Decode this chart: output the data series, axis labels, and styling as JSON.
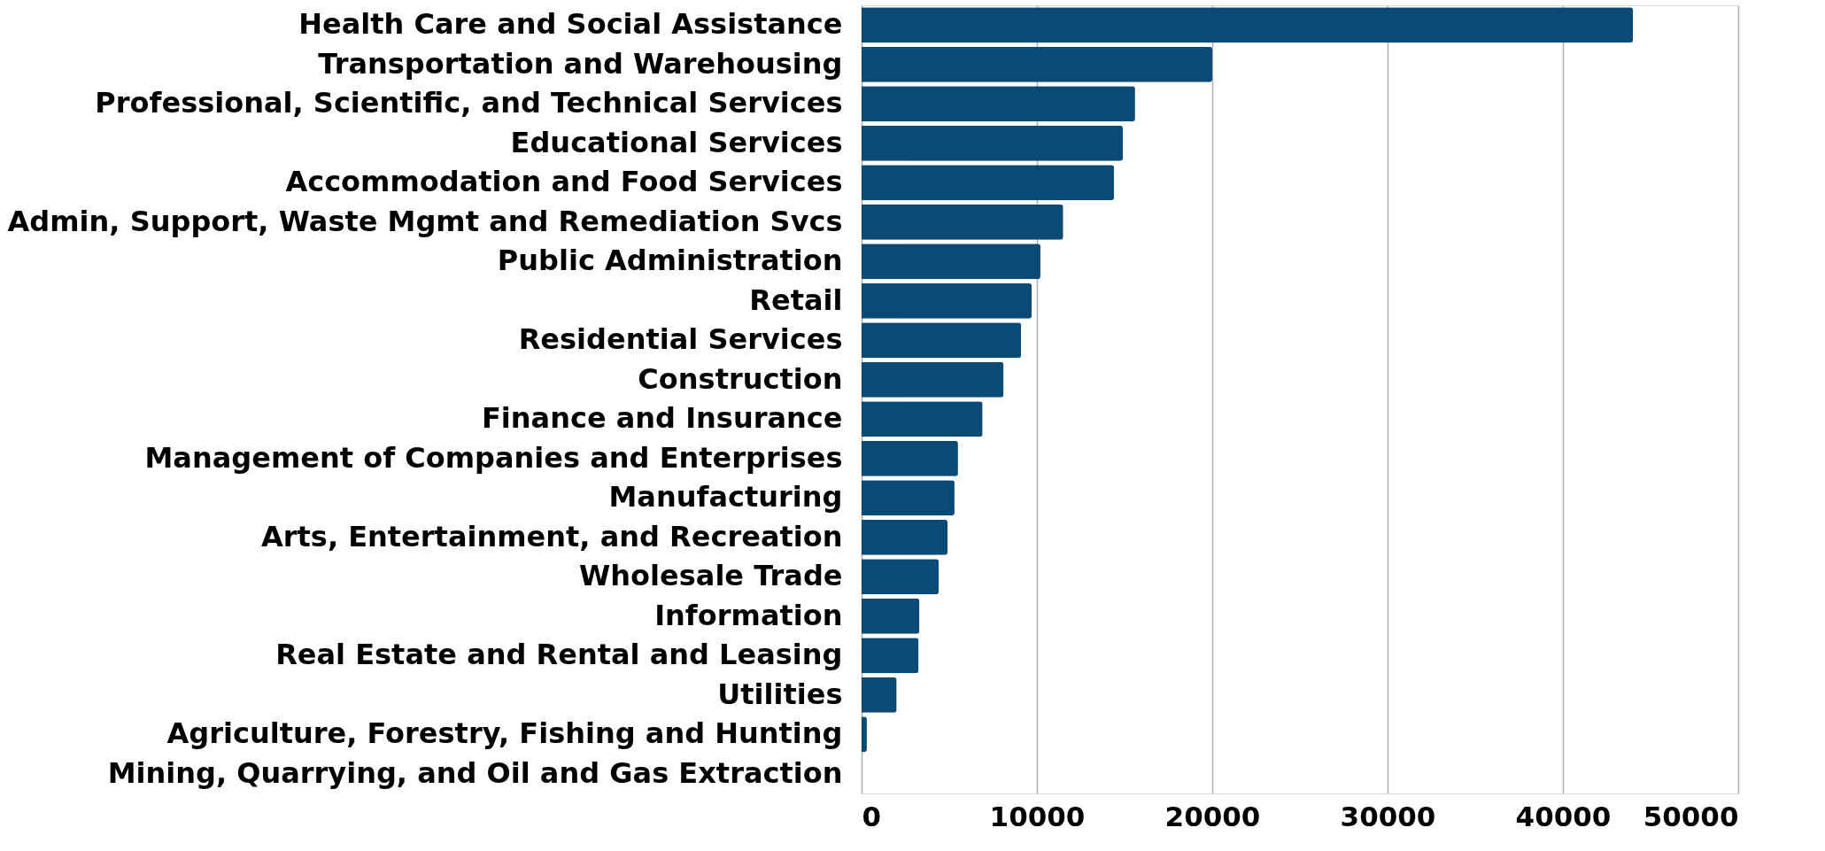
{
  "chart_data": {
    "type": "bar",
    "orientation": "horizontal",
    "categories": [
      "Health Care and Social Assistance",
      "Transportation and Warehousing",
      "Professional, Scientific, and Technical Services",
      "Educational Services",
      "Accommodation and Food Services",
      "Admin, Support, Waste Mgmt and Remediation Svcs",
      "Public Administration",
      "Retail",
      "Residential Services",
      "Construction",
      "Finance and Insurance",
      "Management of Companies and Enterprises",
      "Manufacturing",
      "Arts, Entertainment, and Recreation",
      "Wholesale Trade",
      "Information",
      "Real Estate and Rental and Leasing",
      "Utilities",
      "Agriculture, Forestry, Fishing and Hunting",
      "Mining, Quarrying, and Oil and Gas Extraction"
    ],
    "values": [
      44000,
      20000,
      15600,
      14900,
      14400,
      11500,
      10200,
      9700,
      9100,
      8100,
      6900,
      5500,
      5300,
      4900,
      4400,
      3300,
      3250,
      2000,
      300,
      0
    ],
    "color": "#0b4a74",
    "xlim": [
      0,
      50000
    ],
    "xticks": [
      0,
      10000,
      20000,
      30000,
      40000,
      50000
    ],
    "grid": "x"
  }
}
